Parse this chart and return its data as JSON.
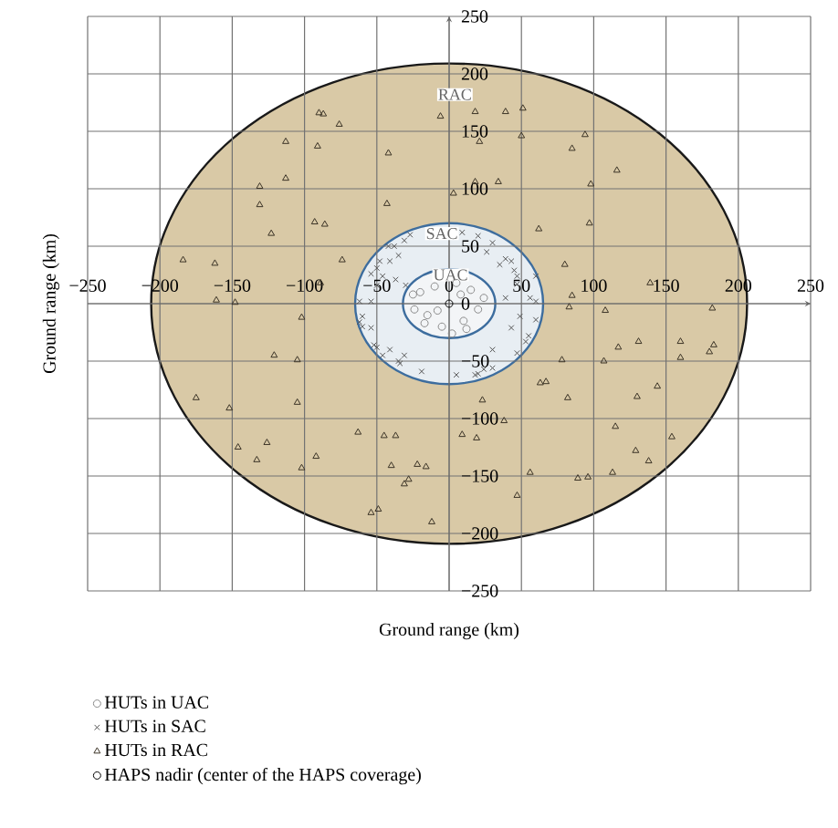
{
  "chart_data": {
    "type": "scatter",
    "xlabel": "Ground range (km)",
    "ylabel": "Ground range (km)",
    "xlim": [
      -250,
      250
    ],
    "ylim": [
      -250,
      250
    ],
    "xticks": [
      {
        "value": -250,
        "label": "−250"
      },
      {
        "value": -200,
        "label": "−200"
      },
      {
        "value": -150,
        "label": "−150"
      },
      {
        "value": -100,
        "label": "−100"
      },
      {
        "value": -50,
        "label": "−50"
      },
      0,
      50,
      100,
      150,
      200,
      250
    ],
    "yticks": [
      {
        "value": -250,
        "label": "−250"
      },
      {
        "value": -200,
        "label": "−200"
      },
      {
        "value": -150,
        "label": "−150"
      },
      {
        "value": -100,
        "label": "−100"
      },
      {
        "value": -50,
        "label": "−50"
      },
      0,
      50,
      100,
      150,
      200,
      250
    ],
    "grid": true,
    "legend": "bottom",
    "annotations": [
      {
        "text": "RAC",
        "x": 4,
        "y": 182
      },
      {
        "text": "SAC",
        "x": -5,
        "y": 61
      },
      {
        "text": "UAC",
        "x": 1,
        "y": 25
      }
    ],
    "series": [
      {
        "name": "HUTs in UAC",
        "type": "scatter",
        "marker": "circle",
        "color": "#8a8a8a",
        "x": [
          -20,
          -15,
          -24,
          -10,
          5,
          15,
          20,
          10,
          -5,
          -17,
          24,
          2,
          12,
          -25,
          8,
          -8
        ],
        "values": [
          10,
          -10,
          -5,
          15,
          18,
          12,
          -5,
          -15,
          -20,
          -17,
          5,
          -26,
          -22,
          8,
          8,
          -6
        ]
      },
      {
        "name": "HUTs in SAC",
        "type": "scatter",
        "marker": "cross",
        "color": "#555555",
        "x": [
          -42,
          -35,
          -41,
          -50,
          -46,
          30,
          26,
          39,
          35,
          45,
          47,
          39,
          49,
          43,
          30,
          24,
          18,
          5,
          -19,
          -35,
          -46,
          -52,
          -62,
          -60,
          -54,
          -50,
          -54,
          9,
          -27,
          -31,
          -38,
          -48,
          -54,
          -62,
          -37,
          -30,
          20,
          43,
          47,
          60,
          56,
          60,
          60,
          53,
          55,
          30,
          20,
          47,
          -60,
          -50,
          -41,
          -34,
          -31
        ],
        "values": [
          50,
          42,
          37,
          31,
          24,
          53,
          45,
          39,
          34,
          29,
          17,
          5,
          -11,
          -21,
          -40,
          -57,
          -62,
          -62,
          -59,
          -50,
          -45,
          -36,
          -16,
          -11,
          -21,
          16,
          2,
          62,
          60,
          55,
          50,
          37,
          26,
          2,
          21,
          16,
          59,
          37,
          24,
          24,
          5,
          2,
          -14,
          -33,
          -28,
          -56,
          -61,
          -43,
          -20,
          -38,
          -40,
          -52,
          -45
        ]
      },
      {
        "name": "HUTs in RAC",
        "type": "scatter",
        "marker": "triangle",
        "color": "#3b3326",
        "x": [
          -90,
          -87,
          -76,
          -113,
          -91,
          -42,
          -113,
          -131,
          -131,
          -43,
          -123,
          -93,
          -86,
          -184,
          -162,
          -74,
          -89,
          -161,
          -148,
          -6,
          18,
          39,
          51,
          21,
          50,
          94,
          85,
          116,
          18,
          34,
          3,
          98,
          62,
          97,
          80,
          139,
          85,
          182,
          -102,
          -121,
          -105,
          -175,
          -152,
          -105,
          -146,
          -126,
          -133,
          -92,
          -102,
          -63,
          -45,
          -37,
          -40,
          -22,
          -16,
          -31,
          -28,
          -54,
          -49,
          -12,
          83,
          108,
          117,
          131,
          160,
          183,
          180,
          160,
          78,
          107,
          63,
          67,
          144,
          82,
          130,
          23,
          38,
          9,
          19,
          115,
          154,
          129,
          138,
          56,
          89,
          96,
          113,
          47
        ],
        "values": [
          166,
          165,
          156,
          141,
          137,
          131,
          109,
          102,
          86,
          87,
          61,
          71,
          69,
          38,
          35,
          38,
          18,
          3,
          1,
          163,
          167,
          167,
          170,
          141,
          146,
          147,
          135,
          116,
          106,
          106,
          96,
          104,
          65,
          70,
          34,
          18,
          7,
          -4,
          -12,
          -45,
          -49,
          -82,
          -91,
          -86,
          -125,
          -121,
          -136,
          -133,
          -143,
          -112,
          -115,
          -115,
          -141,
          -140,
          -142,
          -157,
          -153,
          -182,
          -179,
          -190,
          -3,
          -6,
          -38,
          -33,
          -33,
          -36,
          -42,
          -47,
          -49,
          -50,
          -69,
          -68,
          -72,
          -82,
          -81,
          -84,
          -102,
          -114,
          -117,
          -107,
          -116,
          -128,
          -137,
          -147,
          -152,
          -151,
          -147,
          -167
        ]
      },
      {
        "name": "HAPS nadir (center of the HAPS coverage)",
        "type": "scatter",
        "marker": "circle",
        "color": "#000000",
        "x": [
          0
        ],
        "values": [
          0
        ]
      }
    ]
  }
}
